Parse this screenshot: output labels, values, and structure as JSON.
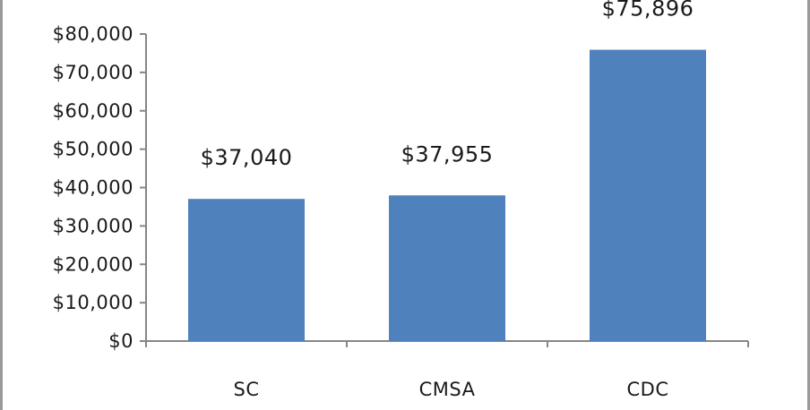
{
  "chart_data": {
    "type": "bar",
    "categories": [
      "SC",
      "CMSA",
      "CDC"
    ],
    "values": [
      37040,
      37955,
      75896
    ],
    "data_labels": [
      "$37,040",
      "$37,955",
      "$75,896"
    ],
    "ylim": [
      0,
      80000
    ],
    "yticks": [
      0,
      10000,
      20000,
      30000,
      40000,
      50000,
      60000,
      70000,
      80000
    ],
    "ytick_labels": [
      "$0",
      "$10,000",
      "$20,000",
      "$30,000",
      "$40,000",
      "$50,000",
      "$60,000",
      "$70,000",
      "$80,000"
    ],
    "title": "",
    "xlabel": "",
    "ylabel": "",
    "grid": false,
    "legend": "none",
    "bar_color": "#4f81bd",
    "axis_color": "#868686"
  }
}
